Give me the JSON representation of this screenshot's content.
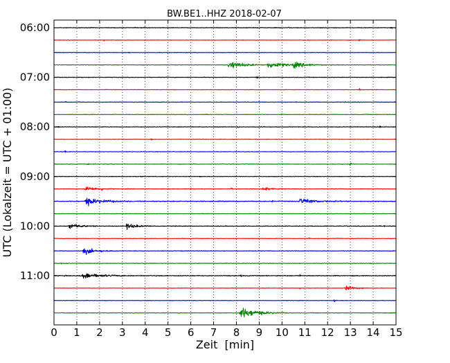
{
  "chart_data": {
    "type": "line",
    "title": "BW.BE1..HHZ 2018-02-07",
    "xlabel": "Zeit  [min]",
    "ylabel": "UTC (Lokalzeit = UTC + 01:00)",
    "xlim": [
      0,
      15
    ],
    "x_ticks": [
      "0",
      "1",
      "2",
      "3",
      "4",
      "5",
      "6",
      "7",
      "8",
      "9",
      "10",
      "11",
      "12",
      "13",
      "14",
      "15"
    ],
    "y_tick_labels": [
      "06:00",
      "07:00",
      "08:00",
      "09:00",
      "10:00",
      "11:00"
    ],
    "grid": "vertical-dotted",
    "colors": [
      "#000000",
      "#ff0000",
      "#0000ff",
      "#008000"
    ],
    "traces": [
      {
        "start": "06:00",
        "color": "#000000",
        "base_amp": 0.35,
        "spikes": [
          [
            4.0,
            1.6
          ],
          [
            10.3,
            1.2
          ],
          [
            14.8,
            1.3
          ]
        ]
      },
      {
        "start": "06:15",
        "color": "#ff0000",
        "base_amp": 0.3,
        "spikes": [
          [
            2.2,
            1.6
          ],
          [
            13.4,
            1.0
          ]
        ]
      },
      {
        "start": "06:30",
        "color": "#0000ff",
        "base_amp": 0.3,
        "spikes": [
          [
            3.3,
            1.0
          ],
          [
            5.8,
            0.8
          ]
        ]
      },
      {
        "start": "06:45",
        "color": "#008000",
        "base_amp": 0.35,
        "events": [
          [
            7.7,
            5.5,
            1.5
          ],
          [
            9.4,
            4.0,
            2.0
          ],
          [
            10.5,
            2.8,
            1.5
          ]
        ],
        "spikes": [
          [
            11.2,
            1.0
          ]
        ]
      },
      {
        "start": "07:00",
        "color": "#000000",
        "base_amp": 0.35,
        "spikes": [
          [
            7.0,
            1.0
          ],
          [
            8.9,
            1.5
          ]
        ]
      },
      {
        "start": "07:15",
        "color": "#ff0000",
        "base_amp": 0.3,
        "spikes": [
          [
            13.4,
            2.0
          ]
        ]
      },
      {
        "start": "07:30",
        "color": "#0000ff",
        "base_amp": 0.35,
        "spikes": [
          [
            0.5,
            1.0
          ],
          [
            1.1,
            1.1
          ],
          [
            9.0,
            1.0
          ]
        ]
      },
      {
        "start": "07:45",
        "color": "#008000",
        "base_amp": 0.3,
        "spikes": [
          [
            10.0,
            1.1
          ]
        ]
      },
      {
        "start": "08:00",
        "color": "#000000",
        "base_amp": 0.35,
        "spikes": [
          [
            0.2,
            1.5
          ],
          [
            8.1,
            1.3
          ],
          [
            9.2,
            2.0
          ],
          [
            11.6,
            1.2
          ],
          [
            14.3,
            1.6
          ]
        ]
      },
      {
        "start": "08:15",
        "color": "#ff0000",
        "base_amp": 0.3,
        "spikes": [
          [
            4.3,
            1.3
          ]
        ]
      },
      {
        "start": "08:30",
        "color": "#0000ff",
        "base_amp": 0.3,
        "spikes": [
          [
            0.5,
            1.5
          ]
        ]
      },
      {
        "start": "08:45",
        "color": "#008000",
        "base_amp": 0.3,
        "spikes": [
          [
            1.5,
            1.0
          ],
          [
            2.5,
            1.0
          ],
          [
            13.0,
            1.8
          ]
        ]
      },
      {
        "start": "09:00",
        "color": "#000000",
        "base_amp": 0.3,
        "spikes": [
          [
            3.8,
            1.2
          ],
          [
            6.4,
            1.0
          ]
        ]
      },
      {
        "start": "09:15",
        "color": "#ff0000",
        "base_amp": 0.35,
        "events": [
          [
            1.4,
            3.0,
            1.2
          ],
          [
            9.2,
            2.4,
            1.0
          ]
        ],
        "spikes": [
          [
            2.1,
            1.4
          ],
          [
            6.0,
            1.0
          ],
          [
            7.8,
            1.2
          ]
        ]
      },
      {
        "start": "09:30",
        "color": "#0000ff",
        "base_amp": 0.5,
        "events": [
          [
            1.4,
            4.5,
            2.0
          ],
          [
            10.8,
            3.6,
            1.8
          ]
        ],
        "spikes": [
          [
            9.6,
            1.6
          ]
        ]
      },
      {
        "start": "09:45",
        "color": "#008000",
        "base_amp": 0.3,
        "spikes": []
      },
      {
        "start": "10:00",
        "color": "#000000",
        "base_amp": 0.4,
        "events": [
          [
            0.7,
            3.2,
            1.2
          ],
          [
            3.2,
            3.2,
            1.2
          ]
        ],
        "spikes": [
          [
            12.8,
            1.0
          ],
          [
            14.5,
            1.6
          ]
        ]
      },
      {
        "start": "10:15",
        "color": "#ff0000",
        "base_amp": 0.3,
        "spikes": [
          [
            11.2,
            1.0
          ]
        ]
      },
      {
        "start": "10:30",
        "color": "#0000ff",
        "base_amp": 0.35,
        "events": [
          [
            1.3,
            4.0,
            1.5
          ]
        ],
        "spikes": [
          [
            12.7,
            1.0
          ]
        ]
      },
      {
        "start": "10:45",
        "color": "#008000",
        "base_amp": 0.3,
        "spikes": [
          [
            0.3,
            1.3
          ],
          [
            13.9,
            1.2
          ]
        ]
      },
      {
        "start": "11:00",
        "color": "#000000",
        "base_amp": 0.45,
        "events": [
          [
            1.3,
            3.6,
            2.0
          ]
        ],
        "spikes": [
          [
            0.5,
            1.5
          ],
          [
            8.2,
            1.1
          ],
          [
            10.8,
            1.1
          ]
        ]
      },
      {
        "start": "11:15",
        "color": "#ff0000",
        "base_amp": 0.3,
        "events": [
          [
            12.8,
            3.0,
            1.0
          ]
        ],
        "spikes": [
          [
            10.8,
            1.4
          ]
        ]
      },
      {
        "start": "11:30",
        "color": "#0000ff",
        "base_amp": 0.3,
        "spikes": [
          [
            12.3,
            1.2
          ]
        ]
      },
      {
        "start": "11:45",
        "color": "#008000",
        "base_amp": 0.35,
        "events": [
          [
            8.2,
            6.5,
            2.0
          ]
        ],
        "spikes": []
      }
    ]
  }
}
